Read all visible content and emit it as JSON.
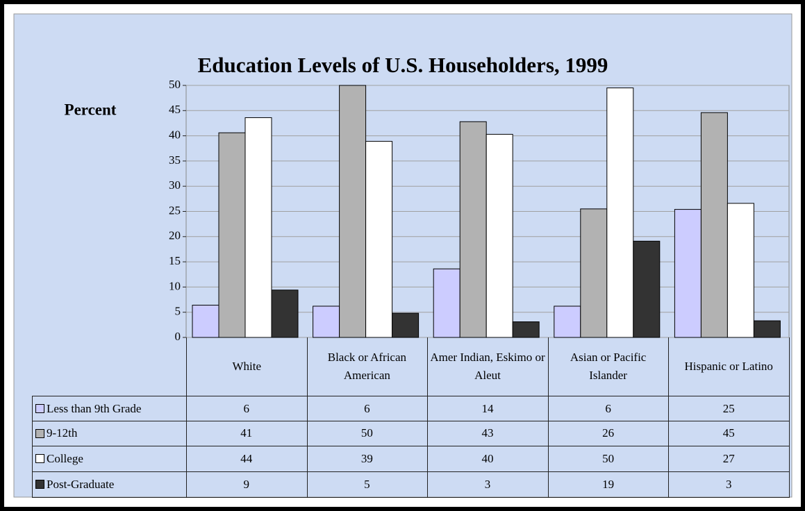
{
  "chart_data": {
    "type": "bar",
    "title": "Education Levels of  U.S. Householders, 1999",
    "y_label": "Percent",
    "categories": [
      "White",
      "Black or African American",
      "Amer Indian, Eskimo or Aleut",
      "Asian or Pacific Islander",
      "Hispanic or Latino"
    ],
    "series": [
      {
        "name": "Less than 9th Grade",
        "color": "#ccccff",
        "values": [
          6.4,
          6.2,
          13.6,
          6.2,
          25.4
        ],
        "value_labels": [
          "6",
          "6",
          "14",
          "6",
          "25"
        ]
      },
      {
        "name": "9-12th",
        "color": "#b2b2b2",
        "values": [
          40.6,
          50,
          42.8,
          25.5,
          44.6
        ],
        "value_labels": [
          "41",
          "50",
          "43",
          "26",
          "45"
        ]
      },
      {
        "name": "College",
        "color": "#ffffff",
        "values": [
          43.6,
          38.9,
          40.3,
          49.5,
          26.6
        ],
        "value_labels": [
          "44",
          "39",
          "40",
          "50",
          "27"
        ]
      },
      {
        "name": "Post-Graduate",
        "color": "#333333",
        "values": [
          9.4,
          4.8,
          3.1,
          19.1,
          3.3
        ],
        "value_labels": [
          "9",
          "5",
          "3",
          "19",
          "3"
        ]
      }
    ],
    "ylim": [
      0,
      50
    ],
    "yticks": [
      0,
      5,
      10,
      15,
      20,
      25,
      30,
      35,
      40,
      45,
      50
    ],
    "grid": true
  }
}
